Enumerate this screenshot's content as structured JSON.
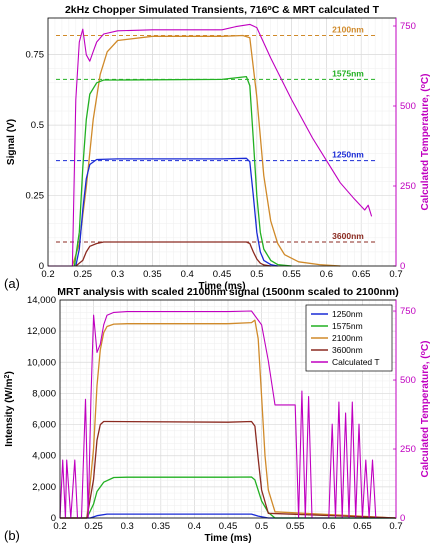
{
  "chart_data": [
    {
      "type": "line",
      "panel_label": "(a)",
      "title": "2kHz Chopper Simulated Transients, 716°C & MRT calculated T",
      "xlabel": "Time (ms)",
      "ylabel": "Signal (V)",
      "y2label": "Calculated Temperature, (°C)",
      "xlim": [
        0.2,
        0.7
      ],
      "ylim": [
        0,
        0.88
      ],
      "y2lim": [
        0,
        775
      ],
      "x_ticks": [
        "0.2",
        "0.25",
        "0.3",
        "0.35",
        "0.4",
        "0.45",
        "0.5",
        "0.55",
        "0.6",
        "0.65",
        "0.7"
      ],
      "y_ticks": [
        "0",
        "0.25",
        "0.5",
        "0.75"
      ],
      "y_tick_values": [
        0,
        0.25,
        0.5,
        0.75
      ],
      "y2_ticks": [
        "0",
        "250",
        "500",
        "750"
      ],
      "y2_tick_values": [
        0,
        250,
        500,
        750
      ],
      "grid": true,
      "series": [
        {
          "name": "2100nm",
          "color": "#d08a2a",
          "axis": "left",
          "x": [
            0.235,
            0.245,
            0.255,
            0.265,
            0.275,
            0.285,
            0.3,
            0.35,
            0.4,
            0.45,
            0.48,
            0.49,
            0.5,
            0.51,
            0.52,
            0.53,
            0.54,
            0.56,
            0.59,
            0.62
          ],
          "y": [
            0,
            0.08,
            0.28,
            0.52,
            0.68,
            0.76,
            0.8,
            0.815,
            0.815,
            0.815,
            0.818,
            0.81,
            0.6,
            0.32,
            0.16,
            0.08,
            0.04,
            0.015,
            0.005,
            0
          ]
        },
        {
          "name": "1575nm",
          "color": "#22b022",
          "axis": "left",
          "x": [
            0.238,
            0.245,
            0.25,
            0.255,
            0.26,
            0.27,
            0.28,
            0.3,
            0.45,
            0.485,
            0.49,
            0.495,
            0.5,
            0.505,
            0.51,
            0.52,
            0.53,
            0.55
          ],
          "y": [
            0,
            0.12,
            0.35,
            0.52,
            0.61,
            0.65,
            0.66,
            0.66,
            0.662,
            0.672,
            0.64,
            0.45,
            0.25,
            0.12,
            0.06,
            0.02,
            0.005,
            0
          ]
        },
        {
          "name": "1250nm",
          "color": "#1a2bd6",
          "axis": "left",
          "x": [
            0.24,
            0.245,
            0.25,
            0.255,
            0.26,
            0.27,
            0.3,
            0.45,
            0.485,
            0.49,
            0.495,
            0.5,
            0.505,
            0.51,
            0.52,
            0.53
          ],
          "y": [
            0,
            0.06,
            0.2,
            0.31,
            0.36,
            0.378,
            0.38,
            0.38,
            0.382,
            0.37,
            0.25,
            0.12,
            0.05,
            0.02,
            0.005,
            0
          ]
        },
        {
          "name": "3600nm",
          "color": "#8b2a20",
          "axis": "left",
          "x": [
            0.24,
            0.25,
            0.255,
            0.26,
            0.27,
            0.28,
            0.3,
            0.45,
            0.485,
            0.49,
            0.495,
            0.5,
            0.505,
            0.51,
            0.52
          ],
          "y": [
            0,
            0.02,
            0.05,
            0.07,
            0.08,
            0.085,
            0.085,
            0.085,
            0.085,
            0.08,
            0.05,
            0.025,
            0.01,
            0.004,
            0
          ]
        },
        {
          "name": "Calculated T",
          "color": "#c000c0",
          "axis": "right",
          "x": [
            0.2,
            0.235,
            0.24,
            0.245,
            0.25,
            0.255,
            0.26,
            0.265,
            0.27,
            0.28,
            0.3,
            0.35,
            0.4,
            0.45,
            0.47,
            0.49,
            0.5,
            0.52,
            0.55,
            0.58,
            0.6,
            0.62,
            0.64,
            0.655,
            0.66,
            0.665
          ],
          "y": [
            0,
            0,
            520,
            700,
            740,
            660,
            640,
            670,
            700,
            725,
            735,
            738,
            738,
            738,
            748,
            755,
            745,
            650,
            520,
            400,
            330,
            260,
            210,
            175,
            190,
            155
          ]
        }
      ],
      "reference_lines": [
        {
          "label": "2100nm",
          "y": 0.818,
          "color": "#d08a2a",
          "style": "dashed"
        },
        {
          "label": "1575nm",
          "y": 0.662,
          "color": "#22b022",
          "style": "dashed"
        },
        {
          "label": "1250nm",
          "y": 0.374,
          "color": "#1a2bd6",
          "style": "dashed"
        },
        {
          "label": "3600nm",
          "y": 0.085,
          "color": "#8b2a20",
          "style": "dashed"
        }
      ]
    },
    {
      "type": "line",
      "panel_label": "(b)",
      "title": "MRT analysis with scaled 2100nm signal (1500nm scaled to 2100nm)",
      "xlabel": "Time (ms)",
      "ylabel": "Intensity (W/m²)",
      "y2label": "Calculated Temperature, (°C)",
      "xlim": [
        0.2,
        0.7
      ],
      "ylim": [
        0,
        14000
      ],
      "y2lim": [
        0,
        790
      ],
      "x_ticks": [
        "0.2",
        "0.25",
        "0.3",
        "0.35",
        "0.4",
        "0.45",
        "0.5",
        "0.55",
        "0.6",
        "0.65",
        "0.7"
      ],
      "y_ticks": [
        "0",
        "2,000",
        "4,000",
        "6,000",
        "8,000",
        "10,000",
        "12,000",
        "14,000"
      ],
      "y_tick_values": [
        0,
        2000,
        4000,
        6000,
        8000,
        10000,
        12000,
        14000
      ],
      "y2_ticks": [
        "0",
        "250",
        "500",
        "750"
      ],
      "y2_tick_values": [
        0,
        250,
        500,
        750
      ],
      "grid": true,
      "legend": {
        "position": "top-right",
        "entries": [
          "1250nm",
          "1575nm",
          "2100nm",
          "3600nm",
          "Calculated T"
        ]
      },
      "series": [
        {
          "name": "1250nm",
          "color": "#1a2bd6",
          "axis": "left",
          "x": [
            0.2,
            0.245,
            0.255,
            0.27,
            0.45,
            0.485,
            0.495,
            0.51,
            0.7
          ],
          "y": [
            0,
            0,
            150,
            250,
            250,
            250,
            120,
            0,
            0
          ]
        },
        {
          "name": "1575nm",
          "color": "#22b022",
          "axis": "left",
          "x": [
            0.2,
            0.24,
            0.25,
            0.255,
            0.265,
            0.28,
            0.3,
            0.45,
            0.485,
            0.49,
            0.5,
            0.51,
            0.52,
            0.7
          ],
          "y": [
            0,
            0,
            900,
            1700,
            2300,
            2600,
            2620,
            2620,
            2630,
            2450,
            1100,
            350,
            0,
            0
          ]
        },
        {
          "name": "2100nm",
          "color": "#d08a2a",
          "axis": "left",
          "x": [
            0.2,
            0.24,
            0.25,
            0.255,
            0.26,
            0.265,
            0.27,
            0.28,
            0.3,
            0.45,
            0.485,
            0.49,
            0.495,
            0.5,
            0.505,
            0.51,
            0.52,
            0.7
          ],
          "y": [
            0,
            0,
            4500,
            8500,
            10800,
            11900,
            12300,
            12450,
            12480,
            12480,
            12550,
            12700,
            11500,
            7800,
            4000,
            1800,
            400,
            0
          ]
        },
        {
          "name": "3600nm",
          "color": "#8b2a20",
          "axis": "left",
          "x": [
            0.2,
            0.24,
            0.25,
            0.255,
            0.26,
            0.265,
            0.27,
            0.45,
            0.485,
            0.49,
            0.495,
            0.5,
            0.51,
            0.7
          ],
          "y": [
            0,
            0,
            2500,
            5000,
            6000,
            6200,
            6200,
            6150,
            6200,
            5900,
            3800,
            1800,
            300,
            0
          ]
        },
        {
          "name": "Calculated T",
          "color": "#c000c0",
          "axis": "right",
          "x": [
            0.2,
            0.2,
            0.204,
            0.208,
            0.21,
            0.216,
            0.222,
            0.226,
            0.232,
            0.238,
            0.242,
            0.246,
            0.25,
            0.255,
            0.26,
            0.265,
            0.27,
            0.28,
            0.3,
            0.35,
            0.4,
            0.45,
            0.485,
            0.5,
            0.51,
            0.52,
            0.55,
            0.555,
            0.56,
            0.565,
            0.57,
            0.575,
            0.6,
            0.605,
            0.61,
            0.615,
            0.62,
            0.625,
            0.63,
            0.635,
            0.64,
            0.645,
            0.65,
            0.655,
            0.66,
            0.665,
            0.67
          ],
          "y": [
            0,
            0,
            210,
            0,
            210,
            0,
            210,
            0,
            0,
            430,
            0,
            430,
            735,
            600,
            630,
            700,
            735,
            745,
            748,
            748,
            748,
            748,
            750,
            700,
            570,
            410,
            410,
            0,
            460,
            0,
            440,
            0,
            0,
            340,
            0,
            420,
            0,
            380,
            0,
            420,
            0,
            340,
            0,
            210,
            0,
            210,
            0
          ]
        }
      ]
    }
  ]
}
